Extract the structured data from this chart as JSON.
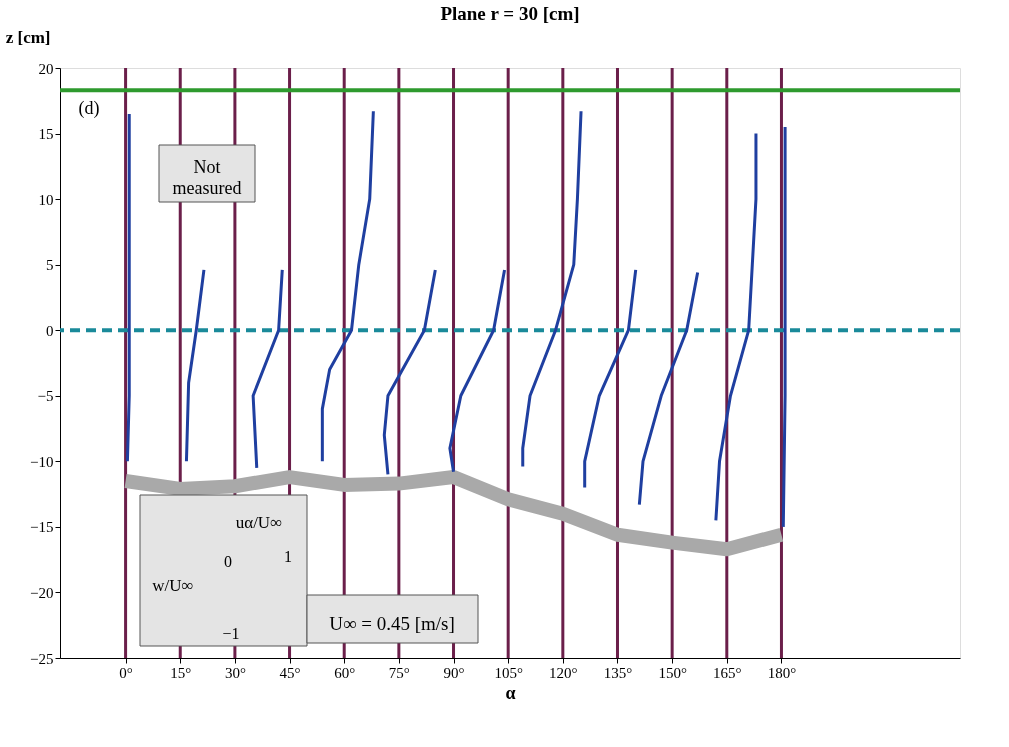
{
  "chart_data": {
    "type": "line",
    "title": "Plane  r = 30 [cm]",
    "xlabel": "α",
    "ylabel": "z [cm]",
    "xlim": [
      -18,
      229
    ],
    "ylim": [
      -25,
      20
    ],
    "xticks": [
      {
        "value": 0,
        "label": "0°"
      },
      {
        "value": 15,
        "label": "15°"
      },
      {
        "value": 30,
        "label": "30°"
      },
      {
        "value": 45,
        "label": "45°"
      },
      {
        "value": 60,
        "label": "60°"
      },
      {
        "value": 75,
        "label": "75°"
      },
      {
        "value": 90,
        "label": "90°"
      },
      {
        "value": 105,
        "label": "105°"
      },
      {
        "value": 120,
        "label": "120°"
      },
      {
        "value": 135,
        "label": "135°"
      },
      {
        "value": 150,
        "label": "150°"
      },
      {
        "value": 165,
        "label": "165°"
      },
      {
        "value": 180,
        "label": "180°"
      }
    ],
    "yticks": [
      -25,
      -20,
      -15,
      -10,
      -5,
      0,
      5,
      10,
      15,
      20
    ],
    "grid": false,
    "marker": "none",
    "series": [
      {
        "color": "#a9a9a9",
        "x": [
          0,
          15,
          30,
          45,
          60,
          75,
          90,
          105,
          120,
          135,
          150,
          165,
          180
        ],
        "values": [
          -11.5,
          -12.1,
          -11.9,
          -11.2,
          -11.8,
          -11.7,
          -11.2,
          -12.9,
          -14.0,
          -15.6,
          -16.2,
          -16.7,
          -15.6
        ]
      },
      {
        "color": "#1f3fa0",
        "x": [
          1,
          1,
          1,
          0.5
        ],
        "values": [
          16.5,
          5,
          -5,
          -10
        ]
      },
      {
        "color": "#1f3fa0",
        "x": [
          21.5,
          19.4,
          17.3,
          16.7
        ],
        "values": [
          4.6,
          0,
          -4,
          -10
        ]
      },
      {
        "color": "#1f3fa0",
        "x": [
          43,
          42,
          35,
          36
        ],
        "values": [
          4.6,
          0,
          -5,
          -10.5
        ]
      },
      {
        "color": "#1f3fa0",
        "x": [
          68,
          67,
          64,
          62,
          56,
          54,
          54
        ],
        "values": [
          16.7,
          10,
          5,
          0,
          -3,
          -6,
          -10
        ]
      },
      {
        "color": "#1f3fa0",
        "x": [
          85,
          82,
          72,
          71,
          72
        ],
        "values": [
          4.6,
          0,
          -5,
          -8,
          -11
        ]
      },
      {
        "color": "#1f3fa0",
        "x": [
          104,
          101,
          92,
          89,
          90
        ],
        "values": [
          4.6,
          0,
          -5,
          -9,
          -10.8
        ]
      },
      {
        "color": "#1f3fa0",
        "x": [
          125,
          124,
          123,
          118,
          111,
          109,
          109
        ],
        "values": [
          16.7,
          10,
          5,
          0,
          -5,
          -9,
          -10.4
        ]
      },
      {
        "color": "#1f3fa0",
        "x": [
          140,
          138,
          130,
          126,
          126
        ],
        "values": [
          4.6,
          0,
          -5,
          -10,
          -12
        ]
      },
      {
        "color": "#1f3fa0",
        "x": [
          157,
          154,
          147,
          142,
          141
        ],
        "values": [
          4.4,
          0,
          -5,
          -10,
          -13.3
        ]
      },
      {
        "color": "#1f3fa0",
        "x": [
          173,
          173,
          172,
          171,
          166,
          163,
          162
        ],
        "values": [
          15,
          10,
          5,
          0,
          -5,
          -10,
          -14.5
        ]
      },
      {
        "color": "#1f3fa0",
        "x": [
          181,
          181,
          181,
          180.5
        ],
        "values": [
          15.5,
          5,
          -5,
          -15
        ]
      }
    ],
    "ref_lines": [
      {
        "axis": "x",
        "value": 0,
        "color": "#6b1f4a"
      },
      {
        "axis": "x",
        "value": 15,
        "color": "#6b1f4a"
      },
      {
        "axis": "x",
        "value": 30,
        "color": "#6b1f4a"
      },
      {
        "axis": "x",
        "value": 45,
        "color": "#6b1f4a"
      },
      {
        "axis": "x",
        "value": 60,
        "color": "#6b1f4a"
      },
      {
        "axis": "x",
        "value": 75,
        "color": "#6b1f4a"
      },
      {
        "axis": "x",
        "value": 90,
        "color": "#6b1f4a"
      },
      {
        "axis": "x",
        "value": 105,
        "color": "#6b1f4a"
      },
      {
        "axis": "x",
        "value": 120,
        "color": "#6b1f4a"
      },
      {
        "axis": "x",
        "value": 135,
        "color": "#6b1f4a"
      },
      {
        "axis": "x",
        "value": 150,
        "color": "#6b1f4a"
      },
      {
        "axis": "x",
        "value": 165,
        "color": "#6b1f4a"
      },
      {
        "axis": "x",
        "value": 180,
        "color": "#6b1f4a"
      },
      {
        "axis": "y",
        "value": 0,
        "color": "#1a8a9a",
        "line_style": "dashed"
      },
      {
        "axis": "y",
        "value": 18.3,
        "color": "#2e9a2e",
        "line_style": "solid"
      }
    ],
    "annotations": [
      "(d)",
      "Not measured",
      "uα/U∞",
      "0",
      "1",
      "w/U∞",
      "−1",
      "U∞ = 0.45 [m/s]"
    ]
  }
}
